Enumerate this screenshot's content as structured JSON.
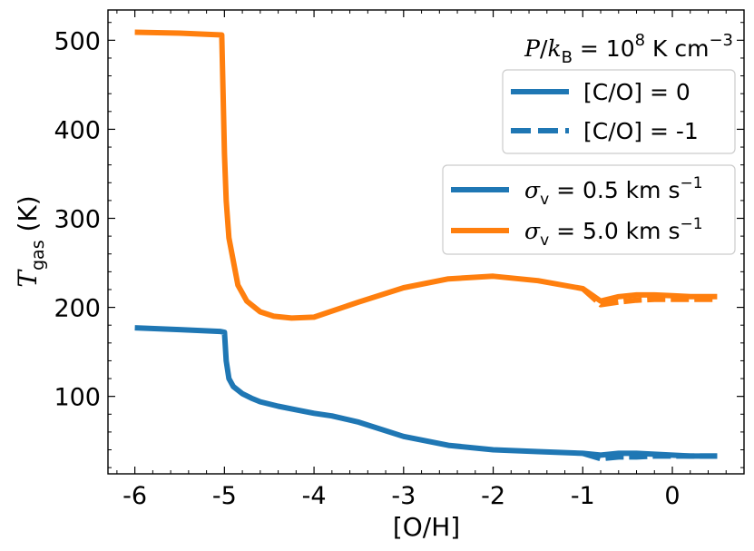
{
  "chart_data": {
    "type": "line",
    "xlabel": "[O/H]",
    "ylabel": {
      "main": "T",
      "sub": "gas",
      "unit": " (K)"
    },
    "xlim": [
      -6.3,
      0.8
    ],
    "ylim": [
      13,
      534
    ],
    "x_ticks": [
      -6,
      -5,
      -4,
      -3,
      -2,
      -1,
      0
    ],
    "x_tick_labels": [
      "-6",
      "-5",
      "-4",
      "-3",
      "-2",
      "-1",
      "0"
    ],
    "y_ticks": [
      100,
      200,
      300,
      400,
      500
    ],
    "y_tick_labels": [
      "100",
      "200",
      "300",
      "400",
      "500"
    ],
    "annotation": {
      "text_italic1": "P",
      "text_slash": "/",
      "text_italic2": "k",
      "text_sub": "B",
      "text_rest": " = 10",
      "text_sup": "8",
      "text_unit": " K cm",
      "text_unit_sup": "−3"
    },
    "legend_linestyle": [
      {
        "label": "[C/O] = 0",
        "style": "solid"
      },
      {
        "label": "[C/O] = -1",
        "style": "dashed"
      }
    ],
    "legend_color": [
      {
        "label_prefix": "σ",
        "label_sub": "v",
        "label_value": " = 0.5 km s",
        "label_sup": "−1",
        "color": "#1f77b4"
      },
      {
        "label_prefix": "σ",
        "label_sub": "v",
        "label_value": " = 5.0 km s",
        "label_sup": "−1",
        "color": "#ff7f0e"
      }
    ],
    "series": [
      {
        "color": "#ff7f0e",
        "style": "solid",
        "x": [
          -6.0,
          -5.5,
          -5.03,
          -5.0,
          -4.98,
          -4.95,
          -4.85,
          -4.75,
          -4.6,
          -4.45,
          -4.25,
          -4.0,
          -3.5,
          -3.0,
          -2.5,
          -2.0,
          -1.5,
          -1.0,
          -0.8,
          -0.6,
          -0.4,
          -0.2,
          0.0,
          0.2,
          0.5
        ],
        "y": [
          509,
          508,
          506,
          372,
          320,
          278,
          225,
          207,
          195,
          190,
          188,
          189,
          206,
          222,
          232,
          235,
          230,
          221,
          207,
          212,
          214,
          214,
          213,
          212,
          212
        ]
      },
      {
        "color": "#ff7f0e",
        "style": "dashed",
        "x": [
          -1.0,
          -0.8,
          -0.6,
          -0.4,
          -0.2,
          0.0,
          0.2,
          0.5
        ],
        "y": [
          221,
          203,
          206,
          208,
          209,
          209,
          209,
          209
        ]
      },
      {
        "color": "#1f77b4",
        "style": "solid",
        "x": [
          -6.0,
          -5.5,
          -5.05,
          -5.0,
          -4.98,
          -4.95,
          -4.9,
          -4.8,
          -4.7,
          -4.6,
          -4.4,
          -4.2,
          -4.0,
          -3.8,
          -3.5,
          -3.0,
          -2.5,
          -2.0,
          -1.5,
          -1.0,
          -0.8,
          -0.6,
          -0.4,
          -0.2,
          0.0,
          0.2,
          0.5
        ],
        "y": [
          177,
          175,
          173,
          172,
          140,
          120,
          111,
          103,
          98,
          94,
          89,
          85,
          81,
          78,
          71,
          55,
          45,
          40,
          38,
          36,
          34,
          36,
          36,
          35,
          34,
          33,
          33
        ]
      },
      {
        "color": "#1f77b4",
        "style": "dashed",
        "x": [
          -1.0,
          -0.8,
          -0.6,
          -0.4,
          -0.2,
          0.0,
          0.2,
          0.5
        ],
        "y": [
          36,
          30,
          32,
          32,
          33,
          33,
          33,
          33
        ]
      }
    ]
  }
}
